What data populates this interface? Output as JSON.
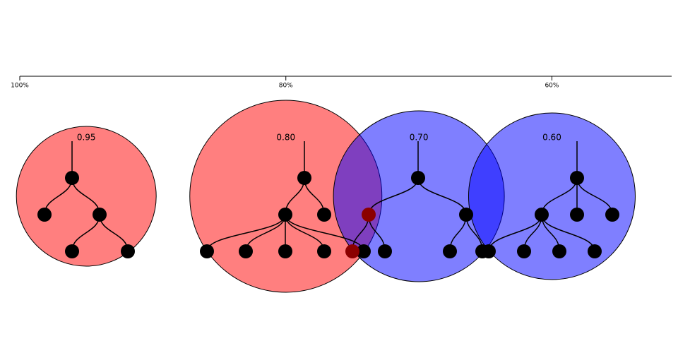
{
  "axis": {
    "xlim": [
      1,
      0.51
    ],
    "ticks": [
      {
        "value": 1,
        "label": "100%"
      },
      {
        "value": 0.8,
        "label": "80%"
      },
      {
        "value": 0.6,
        "label": "60%"
      }
    ]
  },
  "clusters": [
    {
      "value": 0.95,
      "label": "0.95",
      "color": "#ff0000",
      "tree": {
        "children": [
          {},
          {
            "children": [
              {},
              {}
            ]
          }
        ]
      }
    },
    {
      "value": 0.8,
      "label": "0.80",
      "color": "#ff0000",
      "tree": {
        "children": [
          {
            "children": [
              {},
              {},
              {},
              {},
              {}
            ]
          },
          {}
        ]
      }
    },
    {
      "value": 0.7,
      "label": "0.70",
      "color": "#0000ff",
      "tree": {
        "children": [
          {
            "color": "#8b0000",
            "children": [
              {
                "color": "#8b0000"
              },
              {}
            ]
          },
          {
            "children": [
              {},
              {}
            ]
          }
        ]
      }
    },
    {
      "value": 0.6,
      "label": "0.60",
      "color": "#0000ff",
      "tree": {
        "children": [
          {
            "children": [
              {},
              {},
              {},
              {}
            ]
          },
          {},
          {}
        ]
      }
    }
  ]
}
